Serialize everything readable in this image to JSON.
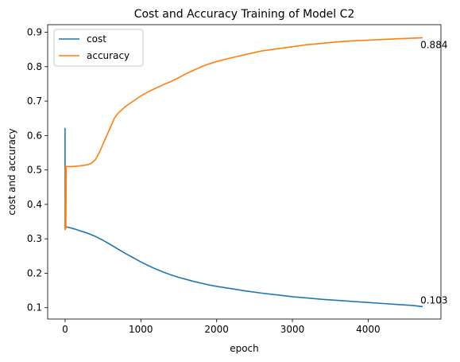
{
  "chart_data": {
    "type": "line",
    "title": "Cost and Accuracy Training of Model C2",
    "xlabel": "epoch",
    "ylabel": "cost and accuracy",
    "xlim": [
      -230,
      4960
    ],
    "ylim": [
      0.067,
      0.922
    ],
    "grid": false,
    "legend": "top-left",
    "xticks": [
      0,
      1000,
      2000,
      3000,
      4000
    ],
    "yticks": [
      0.1,
      0.2,
      0.3,
      0.4,
      0.5,
      0.6,
      0.7,
      0.8,
      0.9
    ],
    "series": [
      {
        "name": "cost",
        "color": "#1f77b4",
        "x": [
          0,
          0,
          0,
          10,
          50,
          100,
          150,
          200,
          300,
          400,
          500,
          600,
          700,
          800,
          900,
          1000,
          1100,
          1200,
          1300,
          1400,
          1500,
          1600,
          1700,
          1800,
          1900,
          2000,
          2200,
          2400,
          2600,
          2800,
          3000,
          3200,
          3400,
          3600,
          3800,
          4000,
          4200,
          4400,
          4600,
          4720
        ],
        "y": [
          0.622,
          0.51,
          0.336,
          0.335,
          0.333,
          0.33,
          0.327,
          0.323,
          0.316,
          0.307,
          0.296,
          0.283,
          0.27,
          0.257,
          0.245,
          0.233,
          0.222,
          0.212,
          0.203,
          0.195,
          0.188,
          0.182,
          0.176,
          0.171,
          0.166,
          0.162,
          0.155,
          0.148,
          0.142,
          0.137,
          0.132,
          0.128,
          0.124,
          0.121,
          0.118,
          0.115,
          0.112,
          0.109,
          0.106,
          0.103
        ]
      },
      {
        "name": "accuracy",
        "color": "#ff7f0e",
        "x": [
          0,
          5,
          10,
          15,
          20,
          50,
          100,
          200,
          300,
          350,
          400,
          450,
          500,
          550,
          600,
          650,
          700,
          800,
          900,
          1000,
          1100,
          1200,
          1300,
          1400,
          1500,
          1600,
          1700,
          1800,
          1900,
          2000,
          2200,
          2400,
          2600,
          2800,
          3000,
          3200,
          3400,
          3600,
          3800,
          4000,
          4200,
          4400,
          4600,
          4720
        ],
        "y": [
          0.325,
          0.51,
          0.33,
          0.51,
          0.51,
          0.51,
          0.51,
          0.512,
          0.515,
          0.52,
          0.53,
          0.55,
          0.575,
          0.6,
          0.625,
          0.65,
          0.665,
          0.685,
          0.7,
          0.715,
          0.727,
          0.738,
          0.748,
          0.757,
          0.768,
          0.78,
          0.79,
          0.8,
          0.808,
          0.815,
          0.826,
          0.836,
          0.846,
          0.852,
          0.858,
          0.864,
          0.868,
          0.872,
          0.875,
          0.877,
          0.879,
          0.881,
          0.883,
          0.884
        ]
      }
    ],
    "annotations": [
      {
        "text": "0.884",
        "x": 4720,
        "y": 0.884,
        "series": "accuracy"
      },
      {
        "text": "0.103",
        "x": 4720,
        "y": 0.103,
        "series": "cost"
      }
    ]
  }
}
